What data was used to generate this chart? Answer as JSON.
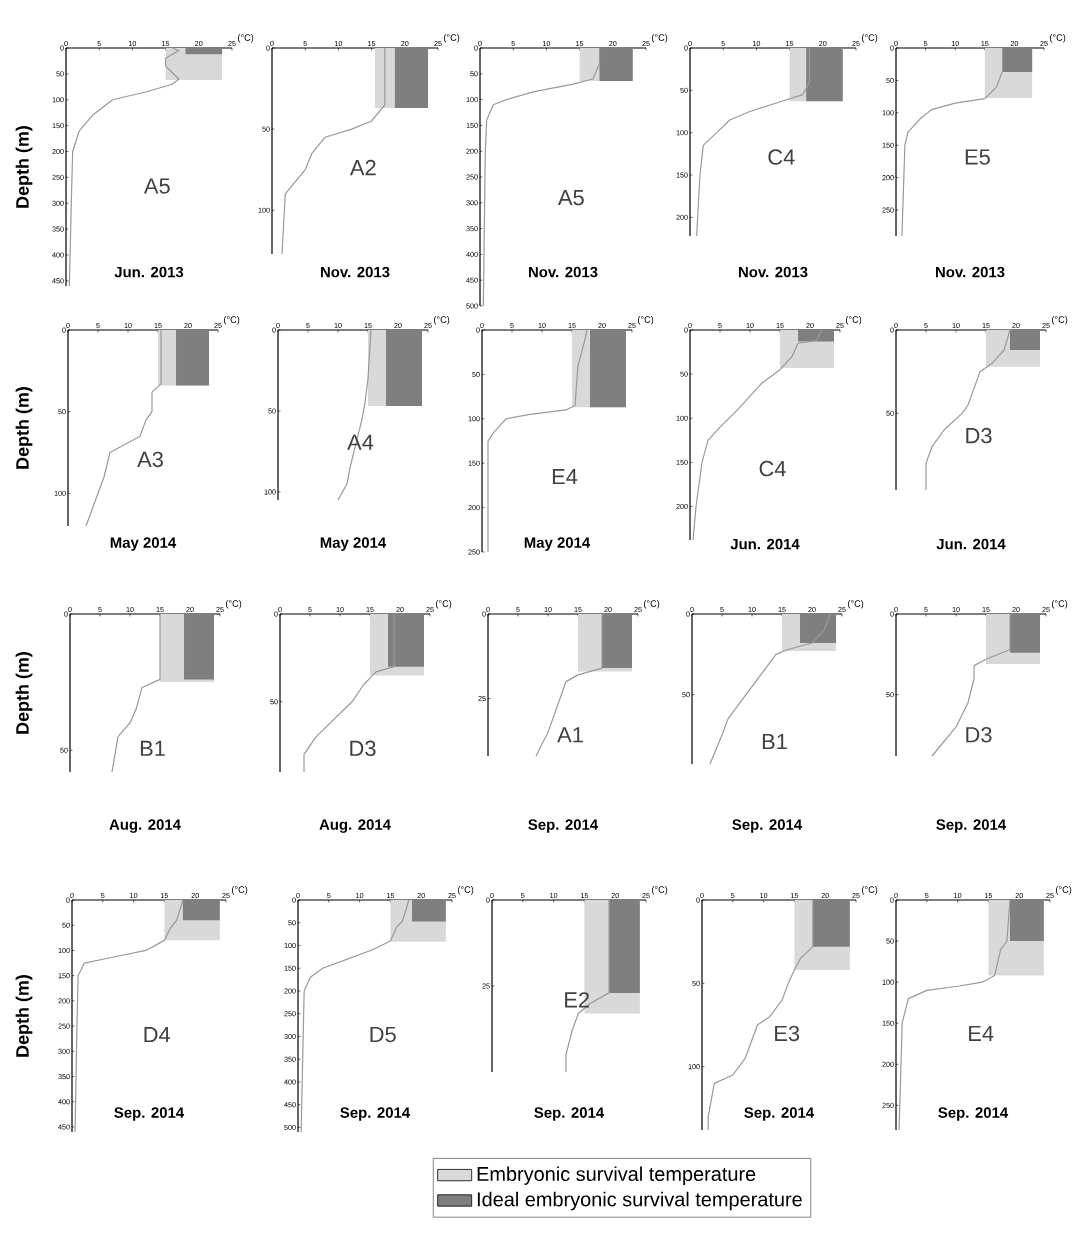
{
  "chart_data": [
    {
      "type": "line",
      "title": "Jun. 2013",
      "xlabel": "(°C)",
      "ylabel": "Depth (m)",
      "annotations": [
        "A5"
      ],
      "xlim": [
        0,
        25
      ],
      "xticks": [
        0,
        5,
        10,
        15,
        20,
        25
      ],
      "ylim": [
        460,
        0
      ],
      "yticks": [
        0,
        50,
        100,
        150,
        200,
        250,
        300,
        350,
        400,
        450
      ],
      "series": [
        {
          "type": "area",
          "color": "#d9d9d9",
          "x": [
            15,
            23.5
          ],
          "values": [
            62,
            62
          ]
        },
        {
          "type": "area",
          "color": "#7f7f7f",
          "x": [
            18,
            23.5
          ],
          "values": [
            12,
            12
          ]
        },
        {
          "color": "#999999",
          "x": [
            16,
            17,
            15,
            15,
            17,
            16,
            12,
            7,
            4,
            2,
            1,
            0.8,
            0.5
          ],
          "values": [
            0,
            5,
            20,
            35,
            60,
            70,
            85,
            100,
            130,
            160,
            200,
            300,
            460
          ]
        }
      ]
    },
    {
      "type": "line",
      "title": "Nov. 2013",
      "xlabel": "(°C)",
      "annotations": [
        "A2"
      ],
      "xlim": [
        0,
        25
      ],
      "xticks": [
        0,
        5,
        10,
        15,
        20,
        25
      ],
      "ylim": [
        127,
        0
      ],
      "yticks": [
        0,
        50,
        100
      ],
      "series": [
        {
          "type": "area",
          "color": "#d9d9d9",
          "x": [
            15.5,
            23.5
          ],
          "values": [
            37,
            37
          ]
        },
        {
          "type": "area",
          "color": "#7f7f7f",
          "x": [
            18.5,
            23.5
          ],
          "values": [
            37,
            37
          ]
        },
        {
          "color": "#999999",
          "x": [
            17,
            17,
            15,
            12,
            8,
            6,
            5,
            3,
            2,
            1.5
          ],
          "values": [
            0,
            35,
            45,
            50,
            55,
            65,
            75,
            85,
            90,
            127
          ]
        }
      ]
    },
    {
      "type": "line",
      "title": "Nov. 2013",
      "xlabel": "(°C)",
      "annotations": [
        "A5"
      ],
      "xlim": [
        0,
        25
      ],
      "xticks": [
        0,
        5,
        10,
        15,
        20,
        25
      ],
      "ylim": [
        500,
        0
      ],
      "yticks": [
        0,
        50,
        100,
        150,
        200,
        250,
        300,
        350,
        400,
        450,
        500
      ],
      "series": [
        {
          "type": "area",
          "color": "#d9d9d9",
          "x": [
            15,
            23
          ],
          "values": [
            64,
            64
          ]
        },
        {
          "type": "area",
          "color": "#7f7f7f",
          "x": [
            18,
            23
          ],
          "values": [
            64,
            64
          ]
        },
        {
          "color": "#999999",
          "x": [
            18,
            18,
            17,
            14,
            8,
            4,
            2,
            1,
            0.8,
            0.5
          ],
          "values": [
            0,
            30,
            60,
            70,
            85,
            100,
            110,
            140,
            200,
            500
          ]
        }
      ]
    },
    {
      "type": "line",
      "title": "Nov. 2013",
      "xlabel": "(°C)",
      "annotations": [
        "C4"
      ],
      "xlim": [
        0,
        25
      ],
      "xticks": [
        0,
        5,
        10,
        15,
        20,
        25
      ],
      "ylim": [
        222,
        0
      ],
      "yticks": [
        0,
        50,
        100,
        150,
        200
      ],
      "series": [
        {
          "type": "area",
          "color": "#d9d9d9",
          "x": [
            15,
            23
          ],
          "values": [
            63,
            63
          ]
        },
        {
          "type": "area",
          "color": "#7f7f7f",
          "x": [
            17.5,
            23
          ],
          "values": [
            63,
            63
          ]
        },
        {
          "color": "#999999",
          "x": [
            18,
            18,
            17,
            13,
            9,
            6,
            4,
            2,
            1.5,
            1
          ],
          "values": [
            0,
            40,
            55,
            65,
            75,
            85,
            100,
            115,
            150,
            222
          ]
        }
      ]
    },
    {
      "type": "line",
      "title": "Nov. 2013",
      "xlabel": "(°C)",
      "annotations": [
        "E5"
      ],
      "xlim": [
        0,
        25
      ],
      "xticks": [
        0,
        5,
        10,
        15,
        20,
        25
      ],
      "ylim": [
        290,
        0
      ],
      "yticks": [
        0,
        50,
        100,
        150,
        200,
        250
      ],
      "series": [
        {
          "type": "area",
          "color": "#d9d9d9",
          "x": [
            15,
            23
          ],
          "values": [
            77,
            77
          ]
        },
        {
          "type": "area",
          "color": "#7f7f7f",
          "x": [
            18,
            23
          ],
          "values": [
            37,
            37
          ]
        },
        {
          "color": "#999999",
          "x": [
            18,
            18,
            17,
            15,
            10,
            6,
            4,
            2,
            1.5,
            1
          ],
          "values": [
            0,
            35,
            60,
            78,
            85,
            95,
            110,
            130,
            150,
            290
          ]
        }
      ]
    },
    {
      "type": "line",
      "title": "May 2014",
      "xlabel": "(°C)",
      "ylabel": "Depth (m)",
      "annotations": [
        "A3"
      ],
      "xlim": [
        0,
        25
      ],
      "xticks": [
        0,
        5,
        10,
        15,
        20,
        25
      ],
      "ylim": [
        120,
        0
      ],
      "yticks": [
        0,
        50,
        100
      ],
      "series": [
        {
          "type": "area",
          "color": "#d9d9d9",
          "x": [
            15,
            23.5
          ],
          "values": [
            34,
            34
          ]
        },
        {
          "type": "area",
          "color": "#7f7f7f",
          "x": [
            18,
            23.5
          ],
          "values": [
            34,
            34
          ]
        },
        {
          "color": "#999999",
          "x": [
            15.5,
            15.5,
            14,
            14,
            13,
            12,
            7,
            6,
            5,
            4,
            3
          ],
          "values": [
            0,
            33,
            38,
            50,
            55,
            65,
            75,
            90,
            100,
            110,
            120
          ]
        }
      ]
    },
    {
      "type": "line",
      "title": "May 2014",
      "xlabel": "(°C)",
      "annotations": [
        "A4"
      ],
      "xlim": [
        0,
        25
      ],
      "xticks": [
        0,
        5,
        10,
        15,
        20,
        25
      ],
      "ylim": [
        105,
        0
      ],
      "yticks": [
        0,
        50,
        100
      ],
      "series": [
        {
          "type": "area",
          "color": "#d9d9d9",
          "x": [
            15,
            24
          ],
          "values": [
            47,
            47
          ]
        },
        {
          "type": "area",
          "color": "#7f7f7f",
          "x": [
            18,
            24
          ],
          "values": [
            47,
            47
          ]
        },
        {
          "color": "#999999",
          "x": [
            15.5,
            15,
            14.5,
            14,
            13,
            12,
            11.5,
            10
          ],
          "values": [
            0,
            30,
            45,
            55,
            70,
            85,
            95,
            105
          ]
        }
      ]
    },
    {
      "type": "line",
      "title": "May 2014",
      "xlabel": "(°C)",
      "annotations": [
        "E4"
      ],
      "xlim": [
        0,
        25
      ],
      "xticks": [
        0,
        5,
        10,
        15,
        20,
        25
      ],
      "ylim": [
        250,
        0
      ],
      "yticks": [
        0,
        50,
        100,
        150,
        200,
        250
      ],
      "series": [
        {
          "type": "area",
          "color": "#d9d9d9",
          "x": [
            15,
            24
          ],
          "values": [
            87,
            87
          ]
        },
        {
          "type": "area",
          "color": "#7f7f7f",
          "x": [
            18,
            24
          ],
          "values": [
            87,
            87
          ]
        },
        {
          "color": "#999999",
          "x": [
            17.5,
            17,
            16,
            15.5,
            14,
            8,
            4,
            2,
            1,
            1
          ],
          "values": [
            0,
            15,
            40,
            85,
            90,
            95,
            100,
            115,
            125,
            250
          ]
        }
      ]
    },
    {
      "type": "line",
      "title": "Jun. 2014",
      "xlabel": "(°C)",
      "annotations": [
        "C4"
      ],
      "xlim": [
        0,
        25
      ],
      "xticks": [
        0,
        5,
        10,
        15,
        20,
        25
      ],
      "ylim": [
        238,
        0
      ],
      "yticks": [
        0,
        50,
        100,
        150,
        200
      ],
      "series": [
        {
          "type": "area",
          "color": "#d9d9d9",
          "x": [
            15,
            24
          ],
          "values": [
            43,
            43
          ]
        },
        {
          "type": "area",
          "color": "#7f7f7f",
          "x": [
            18,
            24
          ],
          "values": [
            13,
            13
          ]
        },
        {
          "color": "#999999",
          "x": [
            22,
            21,
            18,
            17,
            15,
            12,
            10,
            8,
            5,
            3,
            2,
            1,
            0.5
          ],
          "values": [
            0,
            12,
            15,
            30,
            45,
            60,
            75,
            90,
            110,
            125,
            150,
            200,
            238
          ]
        }
      ]
    },
    {
      "type": "line",
      "title": "Jun. 2014",
      "xlabel": "(°C)",
      "annotations": [
        "D3"
      ],
      "xlim": [
        0,
        25
      ],
      "xticks": [
        0,
        5,
        10,
        15,
        20,
        25
      ],
      "ylim": [
        96,
        0
      ],
      "yticks": [
        0,
        50
      ],
      "series": [
        {
          "type": "area",
          "color": "#d9d9d9",
          "x": [
            15,
            24
          ],
          "values": [
            22,
            22
          ]
        },
        {
          "type": "area",
          "color": "#7f7f7f",
          "x": [
            19,
            24
          ],
          "values": [
            12,
            12
          ]
        },
        {
          "color": "#999999",
          "x": [
            19,
            18,
            16,
            14,
            13,
            12,
            11,
            8,
            6,
            5,
            5
          ],
          "values": [
            0,
            12,
            20,
            25,
            35,
            45,
            50,
            60,
            70,
            80,
            96
          ]
        }
      ]
    },
    {
      "type": "line",
      "title": "Aug. 2014",
      "xlabel": "(°C)",
      "ylabel": "Depth (m)",
      "annotations": [
        "B1"
      ],
      "xlim": [
        0,
        25
      ],
      "xticks": [
        0,
        5,
        10,
        15,
        20,
        25
      ],
      "ylim": [
        58,
        0
      ],
      "yticks": [
        0,
        50
      ],
      "series": [
        {
          "type": "area",
          "color": "#d9d9d9",
          "x": [
            15,
            24
          ],
          "values": [
            25,
            25
          ]
        },
        {
          "type": "area",
          "color": "#7f7f7f",
          "x": [
            19,
            24
          ],
          "values": [
            24,
            24
          ]
        },
        {
          "color": "#999999",
          "x": [
            15,
            15,
            12,
            11,
            10,
            8,
            7
          ],
          "values": [
            0,
            24,
            27,
            35,
            40,
            45,
            58
          ]
        }
      ]
    },
    {
      "type": "line",
      "title": "Aug. 2014",
      "xlabel": "(°C)",
      "annotations": [
        "D3"
      ],
      "xlim": [
        0,
        25
      ],
      "xticks": [
        0,
        5,
        10,
        15,
        20,
        25
      ],
      "ylim": [
        90,
        0
      ],
      "yticks": [
        0,
        50
      ],
      "series": [
        {
          "type": "area",
          "color": "#d9d9d9",
          "x": [
            15,
            24
          ],
          "values": [
            35,
            35
          ]
        },
        {
          "type": "area",
          "color": "#7f7f7f",
          "x": [
            18,
            24
          ],
          "values": [
            30,
            30
          ]
        },
        {
          "color": "#999999",
          "x": [
            19,
            19,
            16,
            14,
            12,
            9,
            6,
            4,
            4
          ],
          "values": [
            0,
            30,
            33,
            40,
            50,
            60,
            70,
            80,
            90
          ]
        }
      ]
    },
    {
      "type": "line",
      "title": "Sep. 2014",
      "xlabel": "(°C)",
      "annotations": [
        "A1"
      ],
      "xlim": [
        0,
        25
      ],
      "xticks": [
        0,
        5,
        10,
        15,
        20,
        25
      ],
      "ylim": [
        42,
        0
      ],
      "yticks": [
        0,
        25
      ],
      "series": [
        {
          "type": "area",
          "color": "#d9d9d9",
          "x": [
            15,
            24
          ],
          "values": [
            17,
            17
          ]
        },
        {
          "type": "area",
          "color": "#7f7f7f",
          "x": [
            19,
            24
          ],
          "values": [
            16,
            16
          ]
        },
        {
          "color": "#999999",
          "x": [
            19,
            19,
            15,
            13,
            12,
            10,
            8
          ],
          "values": [
            0,
            16,
            18,
            20,
            25,
            35,
            42
          ]
        }
      ]
    },
    {
      "type": "line",
      "title": "Sep. 2014",
      "xlabel": "(°C)",
      "annotations": [
        "B1"
      ],
      "xlim": [
        0,
        25
      ],
      "xticks": [
        0,
        5,
        10,
        15,
        20,
        25
      ],
      "ylim": [
        93,
        0
      ],
      "yticks": [
        0,
        50
      ],
      "series": [
        {
          "type": "area",
          "color": "#d9d9d9",
          "x": [
            15,
            24
          ],
          "values": [
            23,
            23
          ]
        },
        {
          "type": "area",
          "color": "#7f7f7f",
          "x": [
            18,
            24
          ],
          "values": [
            18,
            18
          ]
        },
        {
          "color": "#999999",
          "x": [
            23,
            22,
            20,
            16,
            14,
            12,
            10,
            8,
            6,
            5,
            3
          ],
          "values": [
            0,
            10,
            18,
            22,
            25,
            35,
            45,
            55,
            65,
            75,
            93
          ]
        }
      ]
    },
    {
      "type": "line",
      "title": "Sep. 2014",
      "xlabel": "(°C)",
      "annotations": [
        "D3"
      ],
      "xlim": [
        0,
        25
      ],
      "xticks": [
        0,
        5,
        10,
        15,
        20,
        25
      ],
      "ylim": [
        88,
        0
      ],
      "yticks": [
        0,
        50
      ],
      "series": [
        {
          "type": "area",
          "color": "#d9d9d9",
          "x": [
            15,
            24
          ],
          "values": [
            31,
            31
          ]
        },
        {
          "type": "area",
          "color": "#7f7f7f",
          "x": [
            19,
            24
          ],
          "values": [
            24,
            24
          ]
        },
        {
          "color": "#999999",
          "x": [
            19,
            19,
            15,
            13,
            13,
            12,
            10,
            6
          ],
          "values": [
            0,
            22,
            28,
            32,
            40,
            55,
            70,
            88
          ]
        }
      ]
    },
    {
      "type": "line",
      "title": "Sep. 2014",
      "xlabel": "(°C)",
      "ylabel": "Depth (m)",
      "annotations": [
        "D4"
      ],
      "xlim": [
        0,
        25
      ],
      "xticks": [
        0,
        5,
        10,
        15,
        20,
        25
      ],
      "ylim": [
        460,
        0
      ],
      "yticks": [
        0,
        50,
        100,
        150,
        200,
        250,
        300,
        350,
        400,
        450
      ],
      "series": [
        {
          "type": "area",
          "color": "#d9d9d9",
          "x": [
            15,
            24
          ],
          "values": [
            80,
            80
          ]
        },
        {
          "type": "area",
          "color": "#7f7f7f",
          "x": [
            18,
            24
          ],
          "values": [
            40,
            40
          ]
        },
        {
          "color": "#999999",
          "x": [
            18,
            17,
            16,
            15,
            12,
            6,
            2,
            1,
            0.8,
            0.5
          ],
          "values": [
            0,
            40,
            55,
            80,
            100,
            115,
            125,
            150,
            250,
            460
          ]
        }
      ]
    },
    {
      "type": "line",
      "title": "Sep. 2014",
      "xlabel": "(°C)",
      "annotations": [
        "D5"
      ],
      "xlim": [
        0,
        25
      ],
      "xticks": [
        0,
        5,
        10,
        15,
        20,
        25
      ],
      "ylim": [
        510,
        0
      ],
      "yticks": [
        0,
        50,
        100,
        150,
        200,
        250,
        300,
        350,
        400,
        450,
        500
      ],
      "series": [
        {
          "type": "area",
          "color": "#d9d9d9",
          "x": [
            15,
            24
          ],
          "values": [
            92,
            92
          ]
        },
        {
          "type": "area",
          "color": "#7f7f7f",
          "x": [
            18.5,
            24
          ],
          "values": [
            47,
            47
          ]
        },
        {
          "color": "#999999",
          "x": [
            18,
            17,
            16,
            15,
            12,
            8,
            4,
            2,
            1,
            0.5
          ],
          "values": [
            0,
            45,
            60,
            90,
            110,
            130,
            150,
            170,
            200,
            510
          ]
        }
      ]
    },
    {
      "type": "line",
      "title": "Sep. 2014",
      "xlabel": "(°C)",
      "annotations": [
        "E2"
      ],
      "xlim": [
        0,
        25
      ],
      "xticks": [
        0,
        5,
        10,
        15,
        20,
        25
      ],
      "ylim": [
        50,
        0
      ],
      "yticks": [
        0,
        25
      ],
      "legend": "bottom",
      "series": [
        {
          "type": "area",
          "name": "Embryonic survival temperature",
          "color": "#d9d9d9",
          "x": [
            15,
            24
          ],
          "values": [
            33,
            33
          ]
        },
        {
          "type": "area",
          "name": "Ideal embryonic survival temperature",
          "color": "#7f7f7f",
          "x": [
            19,
            24
          ],
          "values": [
            27,
            27
          ]
        },
        {
          "color": "#999999",
          "x": [
            19,
            19,
            16,
            14,
            13,
            12,
            12
          ],
          "values": [
            0,
            27,
            30,
            33,
            38,
            45,
            50
          ]
        }
      ]
    },
    {
      "type": "line",
      "title": "Sep. 2014",
      "xlabel": "(°C)",
      "annotations": [
        "E3"
      ],
      "xlim": [
        0,
        25
      ],
      "xticks": [
        0,
        5,
        10,
        15,
        20,
        25
      ],
      "ylim": [
        138,
        0
      ],
      "yticks": [
        0,
        50,
        100
      ],
      "series": [
        {
          "type": "area",
          "color": "#d9d9d9",
          "x": [
            15,
            24
          ],
          "values": [
            42,
            42
          ]
        },
        {
          "type": "area",
          "color": "#7f7f7f",
          "x": [
            18,
            24
          ],
          "values": [
            28,
            28
          ]
        },
        {
          "color": "#999999",
          "x": [
            18,
            18,
            16,
            15,
            14,
            13,
            11,
            9,
            8,
            7,
            5,
            2,
            1,
            1
          ],
          "values": [
            0,
            28,
            35,
            42,
            50,
            60,
            70,
            75,
            85,
            95,
            105,
            110,
            130,
            138
          ]
        }
      ]
    },
    {
      "type": "line",
      "title": "Sep. 2014",
      "xlabel": "(°C)",
      "annotations": [
        "E4"
      ],
      "xlim": [
        0,
        25
      ],
      "xticks": [
        0,
        5,
        10,
        15,
        20,
        25
      ],
      "ylim": [
        280,
        0
      ],
      "yticks": [
        0,
        50,
        100,
        150,
        200,
        250
      ],
      "series": [
        {
          "type": "area",
          "color": "#d9d9d9",
          "x": [
            15,
            24
          ],
          "values": [
            92,
            92
          ]
        },
        {
          "type": "area",
          "color": "#7f7f7f",
          "x": [
            18.5,
            24
          ],
          "values": [
            50,
            50
          ]
        },
        {
          "color": "#999999",
          "x": [
            18.5,
            18,
            17,
            16,
            14,
            10,
            5,
            2,
            1,
            0.5
          ],
          "values": [
            0,
            50,
            60,
            92,
            100,
            105,
            110,
            120,
            150,
            280
          ]
        }
      ]
    }
  ]
}
